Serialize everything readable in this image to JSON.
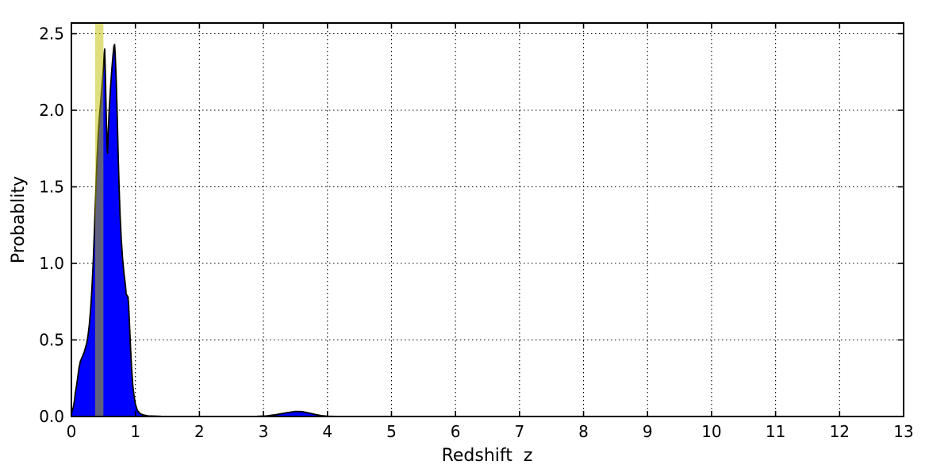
{
  "figure": {
    "background": "#ffffff"
  },
  "chart_data": {
    "type": "area",
    "title": "",
    "xlabel": "Redshift  z",
    "ylabel": "Probablity",
    "xlim": [
      0,
      13
    ],
    "ylim": [
      0,
      2.57
    ],
    "xticks": [
      0,
      1,
      2,
      3,
      4,
      5,
      6,
      7,
      8,
      9,
      10,
      11,
      12,
      13
    ],
    "xtick_labels": [
      "0",
      "1",
      "2",
      "3",
      "4",
      "5",
      "6",
      "7",
      "8",
      "9",
      "10",
      "11",
      "12",
      "13"
    ],
    "yticks": [
      0.0,
      0.5,
      1.0,
      1.5,
      2.0,
      2.5
    ],
    "ytick_labels": [
      "0.0",
      "0.5",
      "1.0",
      "1.5",
      "2.0",
      "2.5"
    ],
    "grid": "dotted",
    "grid_color": "#000000",
    "frame_color": "#000000",
    "legend": "none",
    "series": [
      {
        "name": "redshift-probability-density",
        "fill_color": "#0000ff",
        "line_color": "#000000",
        "points": [
          [
            0.0,
            0.02
          ],
          [
            0.03,
            0.06
          ],
          [
            0.05,
            0.11
          ],
          [
            0.06,
            0.15
          ],
          [
            0.08,
            0.2
          ],
          [
            0.1,
            0.26
          ],
          [
            0.12,
            0.32
          ],
          [
            0.14,
            0.36
          ],
          [
            0.17,
            0.39
          ],
          [
            0.2,
            0.42
          ],
          [
            0.22,
            0.45
          ],
          [
            0.24,
            0.48
          ],
          [
            0.26,
            0.53
          ],
          [
            0.28,
            0.6
          ],
          [
            0.3,
            0.7
          ],
          [
            0.32,
            0.83
          ],
          [
            0.34,
            1.0
          ],
          [
            0.36,
            1.22
          ],
          [
            0.38,
            1.46
          ],
          [
            0.4,
            1.68
          ],
          [
            0.42,
            1.85
          ],
          [
            0.44,
            1.97
          ],
          [
            0.46,
            2.07
          ],
          [
            0.48,
            2.17
          ],
          [
            0.5,
            2.28
          ],
          [
            0.515,
            2.38
          ],
          [
            0.52,
            2.4
          ],
          [
            0.53,
            2.25
          ],
          [
            0.545,
            1.95
          ],
          [
            0.56,
            1.74
          ],
          [
            0.565,
            1.72
          ],
          [
            0.575,
            1.85
          ],
          [
            0.59,
            2.0
          ],
          [
            0.61,
            2.14
          ],
          [
            0.63,
            2.26
          ],
          [
            0.65,
            2.36
          ],
          [
            0.665,
            2.42
          ],
          [
            0.675,
            2.43
          ],
          [
            0.685,
            2.36
          ],
          [
            0.7,
            2.2
          ],
          [
            0.715,
            1.98
          ],
          [
            0.73,
            1.72
          ],
          [
            0.745,
            1.5
          ],
          [
            0.76,
            1.32
          ],
          [
            0.78,
            1.15
          ],
          [
            0.8,
            1.03
          ],
          [
            0.82,
            0.94
          ],
          [
            0.84,
            0.87
          ],
          [
            0.85,
            0.83
          ],
          [
            0.855,
            0.8
          ],
          [
            0.87,
            0.79
          ],
          [
            0.885,
            0.78
          ],
          [
            0.895,
            0.72
          ],
          [
            0.91,
            0.58
          ],
          [
            0.925,
            0.44
          ],
          [
            0.94,
            0.32
          ],
          [
            0.96,
            0.2
          ],
          [
            0.98,
            0.13
          ],
          [
            1.0,
            0.08
          ],
          [
            1.03,
            0.04
          ],
          [
            1.07,
            0.02
          ],
          [
            1.12,
            0.01
          ],
          [
            1.2,
            0.004
          ],
          [
            1.4,
            0.001
          ],
          [
            2.0,
            0.0
          ],
          [
            2.9,
            0.001
          ],
          [
            3.05,
            0.004
          ],
          [
            3.2,
            0.012
          ],
          [
            3.35,
            0.024
          ],
          [
            3.5,
            0.033
          ],
          [
            3.6,
            0.032
          ],
          [
            3.7,
            0.024
          ],
          [
            3.8,
            0.014
          ],
          [
            3.9,
            0.006
          ],
          [
            4.0,
            0.002
          ],
          [
            4.2,
            0.0
          ],
          [
            13.0,
            0.0
          ]
        ]
      }
    ],
    "annotations": [
      {
        "kind": "vspan",
        "name": "highlight-band",
        "x0": 0.37,
        "x1": 0.5,
        "color": "#bfbf00",
        "opacity": 0.5
      }
    ]
  }
}
